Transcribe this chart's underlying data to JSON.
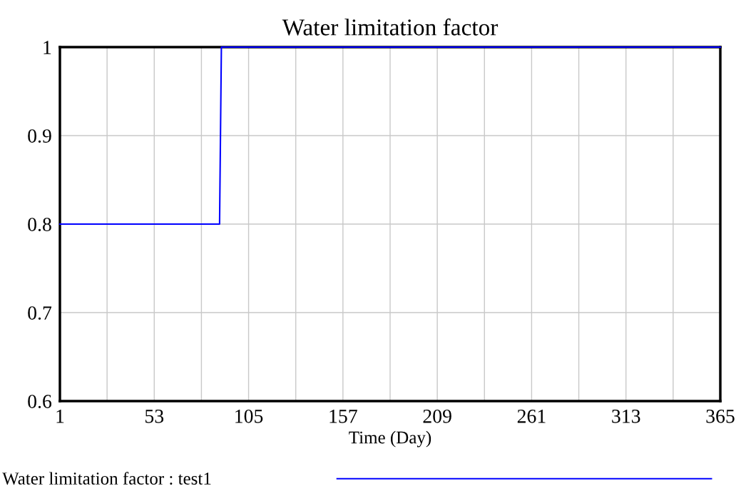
{
  "chart_data": {
    "type": "line",
    "title": "Water limitation factor",
    "xlabel": "Time (Day)",
    "x": [
      1,
      89,
      90,
      365
    ],
    "series": [
      {
        "name": "Water limitation factor : test1",
        "color": "#0000ff",
        "values": [
          0.8,
          0.8,
          1,
          1
        ]
      }
    ],
    "xlim": [
      1,
      365
    ],
    "ylim": [
      0.6,
      1
    ],
    "xticks": [
      1,
      {
        "value": 27,
        "label": null
      },
      53,
      {
        "value": 79,
        "label": null
      },
      105,
      {
        "value": 131,
        "label": null
      },
      157,
      {
        "value": 183,
        "label": null
      },
      209,
      {
        "value": 235,
        "label": null
      },
      261,
      {
        "value": 287,
        "label": null
      },
      313,
      {
        "value": 339,
        "label": null
      },
      365
    ],
    "yticks": [
      0.6,
      0.7,
      0.8,
      0.9,
      1
    ],
    "grid": true,
    "legend": "bottom",
    "marker": "none",
    "line_style": "solid"
  }
}
